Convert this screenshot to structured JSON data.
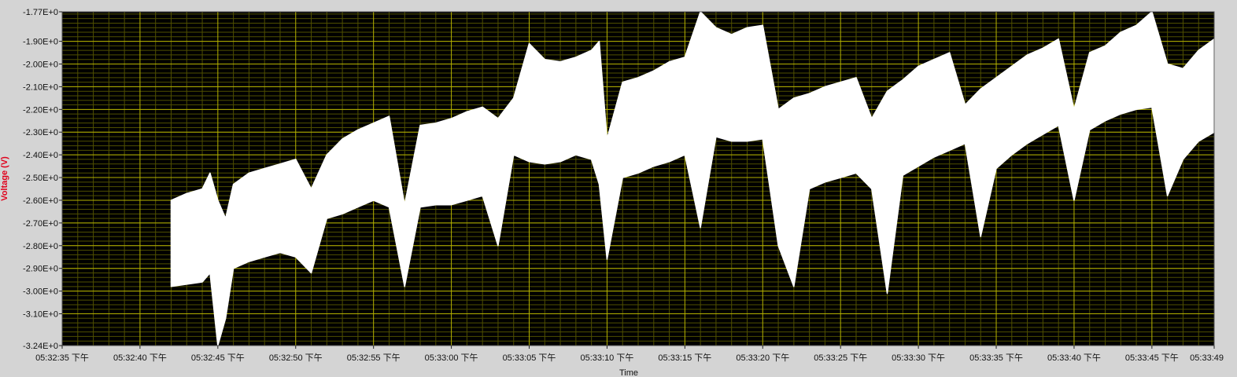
{
  "chart_data": {
    "type": "area",
    "xlabel": "Time",
    "ylabel": "Voltage (V)",
    "ylim": [
      -3.24,
      -1.77
    ],
    "xlim": [
      "05:32:35",
      "05:33:49"
    ],
    "grid": true,
    "colors": {
      "plot_background": "#000000",
      "major_grid": "#b5b200",
      "minor_grid": "#4f4f00",
      "trace": "#ffffff",
      "frame": "#d4d4d4",
      "ylabel": "#e0001b"
    },
    "y_ticks": [
      {
        "value": -1.77,
        "label": "-1.77E+0"
      },
      {
        "value": -1.9,
        "label": "-1.90E+0"
      },
      {
        "value": -2.0,
        "label": "-2.00E+0"
      },
      {
        "value": -2.1,
        "label": "-2.10E+0"
      },
      {
        "value": -2.2,
        "label": "-2.20E+0"
      },
      {
        "value": -2.3,
        "label": "-2.30E+0"
      },
      {
        "value": -2.4,
        "label": "-2.40E+0"
      },
      {
        "value": -2.5,
        "label": "-2.50E+0"
      },
      {
        "value": -2.6,
        "label": "-2.60E+0"
      },
      {
        "value": -2.7,
        "label": "-2.70E+0"
      },
      {
        "value": -2.8,
        "label": "-2.80E+0"
      },
      {
        "value": -2.9,
        "label": "-2.90E+0"
      },
      {
        "value": -3.0,
        "label": "-3.00E+0"
      },
      {
        "value": -3.1,
        "label": "-3.10E+0"
      },
      {
        "value": -3.24,
        "label": "-3.24E+0"
      }
    ],
    "x_ticks": [
      {
        "value": "05:32:35",
        "label": "05:32:35 下午"
      },
      {
        "value": "05:32:40",
        "label": "05:32:40 下午"
      },
      {
        "value": "05:32:45",
        "label": "05:32:45 下午"
      },
      {
        "value": "05:32:50",
        "label": "05:32:50 下午"
      },
      {
        "value": "05:32:55",
        "label": "05:32:55 下午"
      },
      {
        "value": "05:33:00",
        "label": "05:33:00 下午"
      },
      {
        "value": "05:33:05",
        "label": "05:33:05 下午"
      },
      {
        "value": "05:33:10",
        "label": "05:33:10 下午"
      },
      {
        "value": "05:33:15",
        "label": "05:33:15 下午"
      },
      {
        "value": "05:33:20",
        "label": "05:33:20 下午"
      },
      {
        "value": "05:33:25",
        "label": "05:33:25 下午"
      },
      {
        "value": "05:33:30",
        "label": "05:33:30 下午"
      },
      {
        "value": "05:33:35",
        "label": "05:33:35 下午"
      },
      {
        "value": "05:33:40",
        "label": "05:33:40 下午"
      },
      {
        "value": "05:33:45",
        "label": "05:33:45 下午"
      },
      {
        "value": "05:33:49",
        "label": "05:33:49"
      }
    ],
    "envelope": {
      "x": [
        "05:32:42",
        "05:32:43",
        "05:32:44",
        "05:32:44.5",
        "05:32:45",
        "05:32:45.5",
        "05:32:46",
        "05:32:47",
        "05:32:48",
        "05:32:49",
        "05:32:50",
        "05:32:51",
        "05:32:52",
        "05:32:53",
        "05:32:54",
        "05:32:55",
        "05:32:56",
        "05:32:57",
        "05:32:58",
        "05:32:59",
        "05:33:00",
        "05:33:01",
        "05:33:02",
        "05:33:03",
        "05:33:04",
        "05:33:05",
        "05:33:06",
        "05:33:07",
        "05:33:08",
        "05:33:09",
        "05:33:09.5",
        "05:33:10",
        "05:33:11",
        "05:33:12",
        "05:33:13",
        "05:33:14",
        "05:33:15",
        "05:33:16",
        "05:33:17",
        "05:33:18",
        "05:33:19",
        "05:33:20",
        "05:33:21",
        "05:33:22",
        "05:33:23",
        "05:33:24",
        "05:33:25",
        "05:33:26",
        "05:33:27",
        "05:33:28",
        "05:33:29",
        "05:33:30",
        "05:33:31",
        "05:33:32",
        "05:33:33",
        "05:33:34",
        "05:33:35",
        "05:33:36",
        "05:33:37",
        "05:33:38",
        "05:33:39",
        "05:33:40",
        "05:33:41",
        "05:33:42",
        "05:33:43",
        "05:33:44",
        "05:33:45",
        "05:33:46",
        "05:33:47",
        "05:33:48",
        "05:33:49"
      ],
      "upper": [
        -2.6,
        -2.57,
        -2.55,
        -2.48,
        -2.6,
        -2.68,
        -2.53,
        -2.48,
        -2.46,
        -2.44,
        -2.42,
        -2.55,
        -2.4,
        -2.33,
        -2.29,
        -2.26,
        -2.23,
        -2.62,
        -2.27,
        -2.26,
        -2.24,
        -2.21,
        -2.19,
        -2.24,
        -2.15,
        -1.91,
        -1.98,
        -1.99,
        -1.97,
        -1.94,
        -1.9,
        -2.33,
        -2.08,
        -2.06,
        -2.03,
        -1.99,
        -1.97,
        -1.77,
        -1.84,
        -1.87,
        -1.84,
        -1.83,
        -2.2,
        -2.15,
        -2.13,
        -2.1,
        -2.08,
        -2.06,
        -2.24,
        -2.12,
        -2.07,
        -2.01,
        -1.98,
        -1.95,
        -2.18,
        -2.11,
        -2.06,
        -2.01,
        -1.96,
        -1.93,
        -1.89,
        -2.2,
        -1.95,
        -1.92,
        -1.86,
        -1.83,
        -1.77,
        -2.0,
        -2.02,
        -1.94,
        -1.89
      ],
      "lower": [
        -2.98,
        -2.97,
        -2.96,
        -2.92,
        -3.24,
        -3.12,
        -2.9,
        -2.87,
        -2.85,
        -2.83,
        -2.85,
        -2.92,
        -2.68,
        -2.66,
        -2.63,
        -2.6,
        -2.63,
        -2.98,
        -2.63,
        -2.62,
        -2.62,
        -2.6,
        -2.58,
        -2.8,
        -2.4,
        -2.43,
        -2.44,
        -2.43,
        -2.4,
        -2.42,
        -2.53,
        -2.86,
        -2.5,
        -2.48,
        -2.45,
        -2.43,
        -2.4,
        -2.72,
        -2.32,
        -2.34,
        -2.34,
        -2.33,
        -2.8,
        -2.98,
        -2.55,
        -2.52,
        -2.5,
        -2.48,
        -2.55,
        -3.01,
        -2.49,
        -2.45,
        -2.41,
        -2.38,
        -2.35,
        -2.76,
        -2.46,
        -2.4,
        -2.35,
        -2.31,
        -2.27,
        -2.6,
        -2.29,
        -2.25,
        -2.22,
        -2.2,
        -2.19,
        -2.58,
        -2.42,
        -2.34,
        -2.3
      ]
    }
  }
}
